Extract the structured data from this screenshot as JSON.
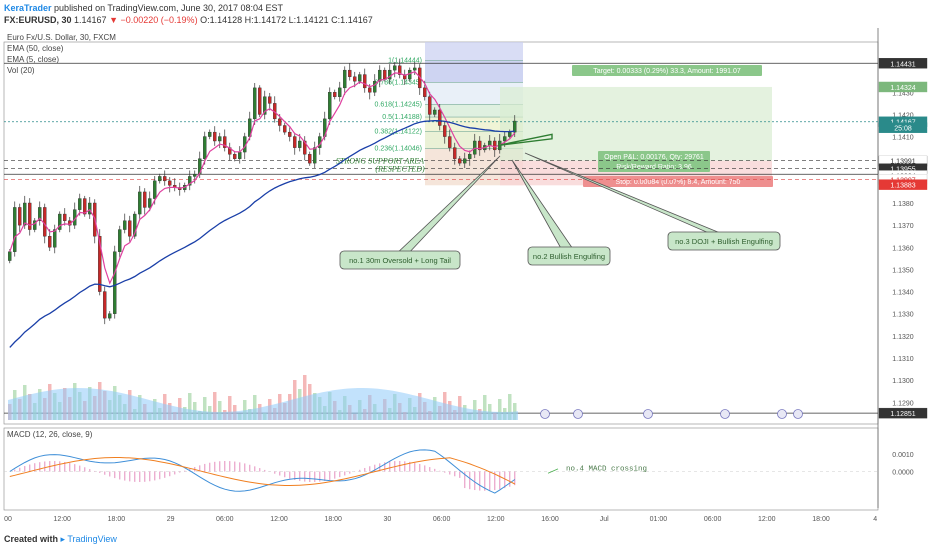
{
  "header": {
    "author": "KeraTrader",
    "published": "published on TradingView.com, June 30, 2017 08:04 EST",
    "symbol": "FX:EURUSD, 30",
    "price": "1.14167",
    "change": "▼ −0.00220 (−0.19%)",
    "ohlc": "O:1.14128 H:1.14172 L:1.14121 C:1.14167"
  },
  "legend": {
    "instrument": "Euro Fx/U.S. Dollar, 30, FXCM",
    "ema50": "EMA (50, close)",
    "ema5": "EMA (5, close)",
    "vol": "Vol (20)",
    "macd": "MACD (12, 26, close, 9)"
  },
  "footer": {
    "created_with": "Created with",
    "brand": "TradingView"
  },
  "colors": {
    "up": "#2e7d32",
    "down": "#c62828",
    "ema50": "#1a3fa8",
    "ema5": "#e040a0",
    "macd_line": "#3f8fd8",
    "signal_line": "#f07f20",
    "hist": "#e8a0c8",
    "target_box": "#d8ecd2",
    "stop_box": "#f7d4d4",
    "fib_top": "#c9cff1"
  },
  "chart_data": [
    {
      "type": "line",
      "title": "Euro Fx/U.S. Dollar, 30, FXCM",
      "x_ticks": [
        "00",
        "12:00",
        "18:00",
        "29",
        "06:00",
        "12:00",
        "18:00",
        "30",
        "06:00",
        "12:00",
        "16:00",
        "Jul",
        "01:00",
        "06:00",
        "12:00",
        "18:00",
        "4"
      ],
      "y_ticks": [
        1.143,
        1.142,
        1.141,
        1.14,
        1.139,
        1.138,
        1.137,
        1.136,
        1.135,
        1.134,
        1.133,
        1.132,
        1.131,
        1.13,
        1.129
      ],
      "ylim": [
        1.1282,
        1.145
      ],
      "price_labels": [
        {
          "value": 1.14431,
          "text": "1.14431",
          "style": "dark"
        },
        {
          "value": 1.14324,
          "text": "1.14324",
          "style": "green"
        },
        {
          "value": 1.14167,
          "text": "1.14167",
          "style": "teal"
        },
        {
          "value": 1.1414,
          "text": "25:08",
          "style": "teal"
        },
        {
          "value": 1.13989,
          "text": "1.13989",
          "style": "dark"
        },
        {
          "value": 1.13991,
          "text": "1.13991",
          "style": "plain"
        },
        {
          "value": 1.13955,
          "text": "1.13955",
          "style": "dark"
        },
        {
          "value": 1.13924,
          "text": "1.13924",
          "style": "plain"
        },
        {
          "value": 1.13907,
          "text": "1.13907",
          "style": "red"
        },
        {
          "value": 1.13883,
          "text": "1.13883",
          "style": "redsolid"
        },
        {
          "value": 1.12851,
          "text": "1.12851",
          "style": "dark"
        }
      ],
      "fib_levels": [
        {
          "label": "1(1.14444)",
          "value": 1.14444
        },
        {
          "label": "0.786(1.14345)",
          "value": 1.14345
        },
        {
          "label": "0.618(1.14245)",
          "value": 1.14245
        },
        {
          "label": "0.5(1.14188)",
          "value": 1.14188
        },
        {
          "label": "0.382(1.14122)",
          "value": 1.14122
        },
        {
          "label": "0.236(1.14046)",
          "value": 1.14046
        }
      ],
      "fib_short_label": "1(1.14444)",
      "support_label": "STRONG SUPPORT AREA",
      "support_sub": "(RESPECTED)",
      "position": {
        "target_text": "Target: 0.00333 (0.29%) 33.3, Amount: 1991.07",
        "open_text": "Open P&L: 0.00176, Qty: 29761",
        "rr_text": "Risk/Reward Ratio: 3.96",
        "stop_text": "Stop: 0.00084 (0.07%) 8.4, Amount: 750",
        "entry": 1.13991,
        "target": 1.14324,
        "stop": 1.13907
      },
      "annotations": [
        "no.1 30m Oversold + Long Tail",
        "no.2 Bullish Engulfing",
        "no.3 DOJI + Bullish Engulfing"
      ],
      "closes": [
        1.1358,
        1.1378,
        1.137,
        1.138,
        1.1368,
        1.1372,
        1.1378,
        1.1365,
        1.136,
        1.1368,
        1.1375,
        1.1372,
        1.137,
        1.1377,
        1.1382,
        1.1375,
        1.138,
        1.1365,
        1.134,
        1.1328,
        1.133,
        1.1358,
        1.1368,
        1.1372,
        1.1365,
        1.1375,
        1.1385,
        1.1378,
        1.1382,
        1.139,
        1.1392,
        1.139,
        1.1388,
        1.1387,
        1.1386,
        1.1388,
        1.1392,
        1.1393,
        1.14,
        1.141,
        1.1412,
        1.1408,
        1.141,
        1.1405,
        1.1402,
        1.14,
        1.1403,
        1.141,
        1.1418,
        1.1432,
        1.142,
        1.1428,
        1.1425,
        1.1418,
        1.1415,
        1.1412,
        1.141,
        1.1405,
        1.1408,
        1.1402,
        1.1398,
        1.1405,
        1.141,
        1.1418,
        1.143,
        1.1428,
        1.1432,
        1.144,
        1.1437,
        1.1435,
        1.1438,
        1.1432,
        1.143,
        1.1435,
        1.144,
        1.1436,
        1.144,
        1.1442,
        1.1438,
        1.1436,
        1.144,
        1.1441,
        1.1432,
        1.1428,
        1.142,
        1.1422,
        1.1415,
        1.141,
        1.1405,
        1.14,
        1.1398,
        1.14,
        1.1402,
        1.1408,
        1.1404,
        1.1406,
        1.1408,
        1.1404,
        1.1408,
        1.141,
        1.1412,
        1.1417
      ],
      "ema50_start": 1.1313,
      "ema50_end": 1.1418
    },
    {
      "type": "line",
      "title": "MACD (12, 26, close, 9)",
      "y_ticks": [
        0.001,
        0.0
      ],
      "ylim": [
        -0.0022,
        0.0018
      ],
      "annotation": "no.4 MACD crossing"
    }
  ]
}
